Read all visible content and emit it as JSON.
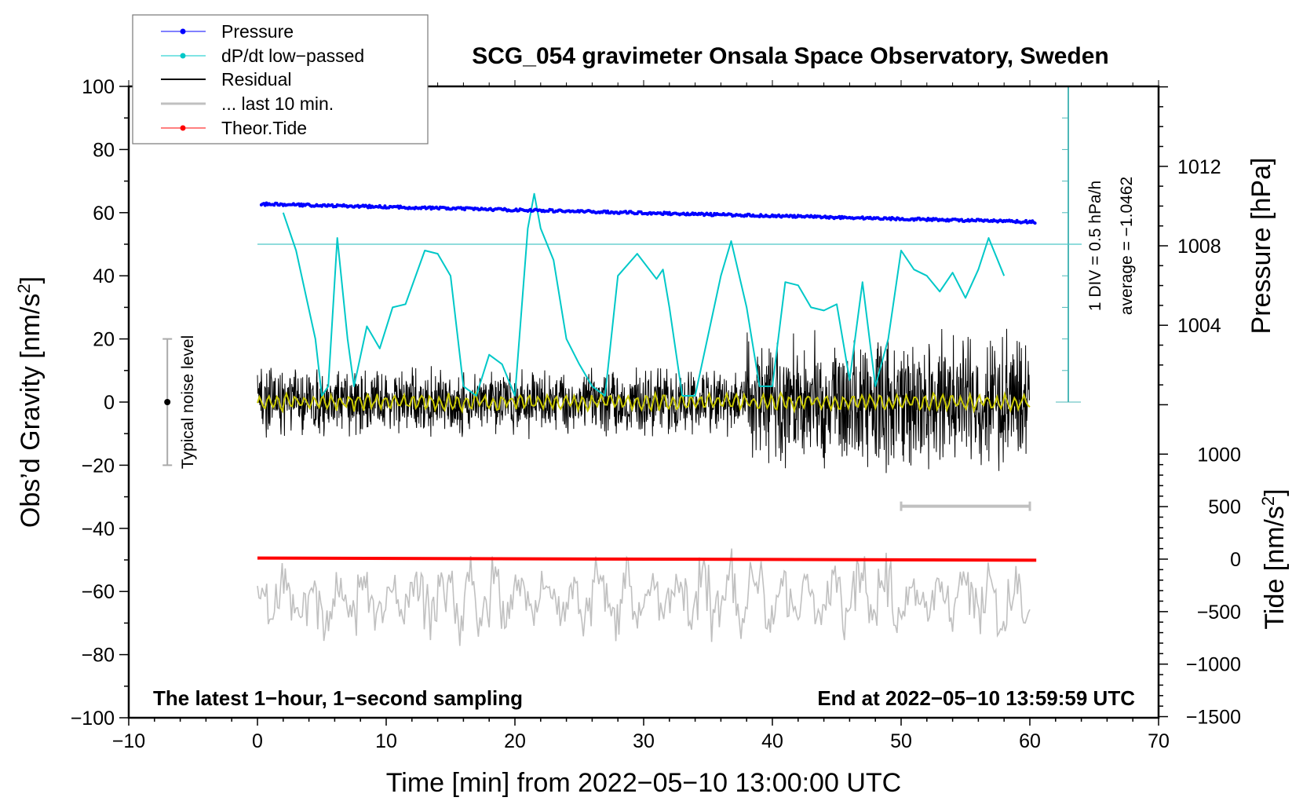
{
  "chart_data": {
    "type": "line",
    "title": "SCG_054 gravimeter Onsala Space Observatory, Sweden",
    "xlabel": "Time [min] from 2022−05−10 13:00:00 UTC",
    "ylabel": "Obs’d Gravity [nm/s",
    "ylabel_sup": "2",
    "ylabel_end": "]",
    "y2label": "Pressure [hPa]",
    "y3label": "Tide [nm/s",
    "y3label_sup": "2",
    "y3label_end": "]",
    "xlim": [
      -10,
      70
    ],
    "ylim": [
      -100,
      100
    ],
    "pressure_ylim_ticks": [
      1004,
      1008,
      1012
    ],
    "tide_ticks": [
      1000,
      500,
      0,
      -500,
      -1000,
      -1500
    ],
    "xticks": [
      -10,
      0,
      10,
      20,
      30,
      40,
      50,
      60,
      70
    ],
    "yticks": [
      100,
      80,
      60,
      40,
      20,
      0,
      -20,
      -40,
      -60,
      -80,
      -100
    ],
    "tick_labels": {
      "x": [
        "−10",
        "0",
        "10",
        "20",
        "30",
        "40",
        "50",
        "60",
        "70"
      ],
      "y": [
        "100",
        "80",
        "60",
        "40",
        "20",
        "0",
        "−20",
        "−40",
        "−60",
        "−80",
        "−100"
      ],
      "pressure": [
        "1004",
        "1008",
        "1012"
      ],
      "tide": [
        "1000",
        "500",
        "0",
        "−500",
        "−1000",
        "−1500"
      ]
    },
    "legend": {
      "position": "top-left",
      "entries": [
        "Pressure",
        "dP/dt low−passed",
        "Residual",
        "... last 10 min.",
        "Theor.Tide"
      ]
    },
    "annotations": {
      "bottom_left": "The latest 1−hour, 1−second sampling",
      "bottom_right": "End at 2022−05−10 13:59:59 UTC",
      "div_scale": "1 DIV = 0.5 hPa/h",
      "average": "average = −1.0462",
      "noise_level": "Typical noise level"
    },
    "series": [
      {
        "name": "Pressure",
        "unit": "hPa",
        "color": "#0000ff",
        "x_range": [
          0.3,
          60.5
        ],
        "start": 1010.1,
        "end": 1009.2
      },
      {
        "name": "dP/dt low−passed",
        "unit": "gravity-axis units (1 DIV = 10)",
        "color": "#00c8c8",
        "x": [
          2,
          3,
          4.5,
          5,
          5.5,
          6.2,
          7,
          7.5,
          8.5,
          9.5,
          10.5,
          11.5,
          13,
          14,
          15,
          16,
          17,
          18,
          19,
          20,
          21,
          21.5,
          22,
          23,
          24,
          25,
          26,
          27,
          28,
          29.5,
          31,
          31.5,
          32,
          33,
          34,
          36,
          36.8,
          38,
          39,
          40,
          41,
          42,
          43,
          44,
          45,
          46,
          47,
          48,
          49,
          50,
          51,
          52,
          53,
          54,
          55,
          56,
          56.8,
          58
        ],
        "y": [
          60,
          48,
          20,
          2,
          5,
          52,
          20,
          5,
          24,
          17,
          30,
          31,
          48,
          47,
          40,
          5,
          2,
          15,
          12,
          2,
          55,
          66,
          55,
          45,
          20,
          12,
          5,
          2,
          40,
          47,
          39,
          42,
          30,
          2,
          2,
          40,
          51,
          30,
          5,
          5,
          38,
          37,
          30,
          29,
          31,
          7,
          38,
          5,
          20,
          48,
          42,
          40,
          35,
          41,
          33,
          42,
          52,
          40
        ]
      },
      {
        "name": "Residual",
        "color": "#000000",
        "x_range": [
          0,
          60
        ],
        "center": 0,
        "amplitude_early": 8,
        "amplitude_late": 16
      },
      {
        "name": "Residual low-passed",
        "color": "#c8c800",
        "x_range": [
          0,
          60
        ],
        "center": 0,
        "amplitude": 2
      },
      {
        "name": "... last 10 min.",
        "color": "#c0c0c0",
        "x_range": [
          0,
          60
        ],
        "center": -62,
        "amplitude": 14
      },
      {
        "name": "Theor.Tide",
        "unit": "nm/s2",
        "color": "#ff0000",
        "x_range": [
          0,
          60.5
        ],
        "start": 10,
        "end": -10
      }
    ],
    "pressure_reference_line": 50,
    "last10_bar": [
      50,
      60
    ],
    "noise_bar": {
      "x": -7,
      "range": [
        -20,
        20
      ]
    }
  }
}
